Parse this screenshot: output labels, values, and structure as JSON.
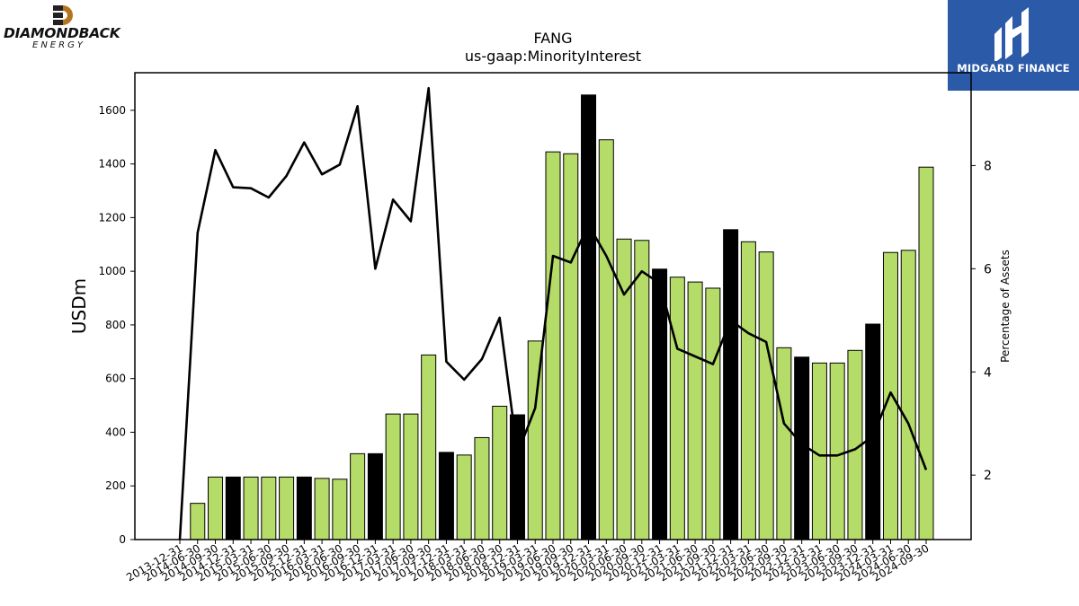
{
  "logos": {
    "left": {
      "name": "DIAMONDBACK",
      "sub": "ENERGY"
    },
    "right": {
      "name": "MIDGARD FINANCE"
    }
  },
  "colors": {
    "bar_green": "#b5dc68",
    "bar_black": "#000000",
    "line": "#000000"
  },
  "chart_data": {
    "type": "bar",
    "title": "FANG",
    "subtitle": "us-gaap:MinorityInterest",
    "ylabel": "USDm",
    "y2label": "Percentage of Assets",
    "ylim": [
      0,
      1740
    ],
    "y2lim": [
      0.75,
      9.8
    ],
    "yticks": [
      0,
      200,
      400,
      600,
      800,
      1000,
      1200,
      1400,
      1600
    ],
    "y2ticks": [
      2,
      4,
      6,
      8
    ],
    "categories": [
      "2013-12-31",
      "2014-06-30",
      "2014-09-30",
      "2014-12-31",
      "2015-03-31",
      "2015-06-30",
      "2015-09-30",
      "2015-12-31",
      "2016-03-31",
      "2016-06-30",
      "2016-09-30",
      "2016-12-31",
      "2017-03-31",
      "2017-06-30",
      "2017-09-30",
      "2017-12-31",
      "2018-03-31",
      "2018-06-30",
      "2018-09-30",
      "2018-12-31",
      "2019-03-31",
      "2019-06-30",
      "2019-09-30",
      "2019-12-31",
      "2020-03-31",
      "2020-06-30",
      "2020-09-30",
      "2020-12-31",
      "2021-03-31",
      "2021-06-30",
      "2021-09-30",
      "2021-12-31",
      "2022-03-31",
      "2022-06-30",
      "2022-09-30",
      "2022-12-31",
      "2023-03-31",
      "2023-06-30",
      "2023-09-30",
      "2023-12-31",
      "2024-03-31",
      "2024-06-30",
      "2024-09-30"
    ],
    "series": [
      {
        "kind": "bar",
        "values": [
          0,
          135,
          233,
          233,
          233,
          233,
          233,
          233,
          228,
          225,
          320,
          320,
          468,
          468,
          688,
          325,
          315,
          380,
          497,
          465,
          740,
          1445,
          1438,
          1657,
          1490,
          1120,
          1115,
          1008,
          978,
          960,
          937,
          1155,
          1110,
          1072,
          715,
          680,
          658,
          658,
          705,
          803,
          1070,
          1078,
          1388
        ]
      },
      {
        "kind": "line",
        "axis": "right",
        "values": [
          0.75,
          6.7,
          8.3,
          7.58,
          7.56,
          7.38,
          7.8,
          8.45,
          7.83,
          8.02,
          9.15,
          6.0,
          7.34,
          6.92,
          9.5,
          4.2,
          3.85,
          4.25,
          5.05,
          2.42,
          3.3,
          6.25,
          6.12,
          6.85,
          6.25,
          5.5,
          5.95,
          5.72,
          4.45,
          4.3,
          4.15,
          5.0,
          4.75,
          4.58,
          3.0,
          2.6,
          2.38,
          2.38,
          2.5,
          2.75,
          3.6,
          3.0,
          2.1
        ]
      }
    ],
    "bar_colors": [
      "green",
      "green",
      "green",
      "black",
      "green",
      "green",
      "green",
      "black",
      "green",
      "green",
      "green",
      "black",
      "green",
      "green",
      "green",
      "black",
      "green",
      "green",
      "green",
      "black",
      "green",
      "green",
      "green",
      "black",
      "green",
      "green",
      "green",
      "black",
      "green",
      "green",
      "green",
      "black",
      "green",
      "green",
      "green",
      "black",
      "green",
      "green",
      "green",
      "black",
      "green",
      "green",
      "green"
    ],
    "grid": false,
    "legend": "none"
  }
}
